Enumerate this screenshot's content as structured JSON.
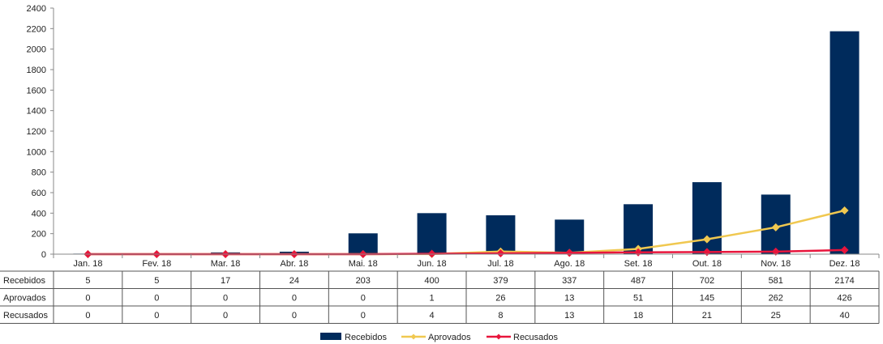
{
  "chart_data": {
    "type": "bar",
    "categories": [
      "Jan. 18",
      "Fev. 18",
      "Mar. 18",
      "Abr. 18",
      "Mai. 18",
      "Jun. 18",
      "Jul. 18",
      "Ago. 18",
      "Set. 18",
      "Out. 18",
      "Nov. 18",
      "Dez. 18"
    ],
    "ylim": [
      0,
      2400
    ],
    "yticks": [
      0,
      200,
      400,
      600,
      800,
      1000,
      1200,
      1400,
      1600,
      1800,
      2000,
      2200,
      2400
    ],
    "title": "",
    "xlabel": "",
    "ylabel": "",
    "series": [
      {
        "name": "Recebidos",
        "kind": "bar",
        "color": "#002b5c",
        "values": [
          5,
          5,
          17,
          24,
          203,
          400,
          379,
          337,
          487,
          702,
          581,
          2174
        ]
      },
      {
        "name": "Aprovados",
        "kind": "line",
        "color": "#f0c850",
        "values": [
          0,
          0,
          0,
          0,
          0,
          1,
          26,
          13,
          51,
          145,
          262,
          426
        ]
      },
      {
        "name": "Recusados",
        "kind": "line",
        "color": "#e8153c",
        "values": [
          0,
          0,
          0,
          0,
          0,
          4,
          8,
          13,
          18,
          21,
          25,
          40
        ]
      }
    ],
    "data_table": true,
    "grid": false,
    "legend_position": "bottom"
  }
}
